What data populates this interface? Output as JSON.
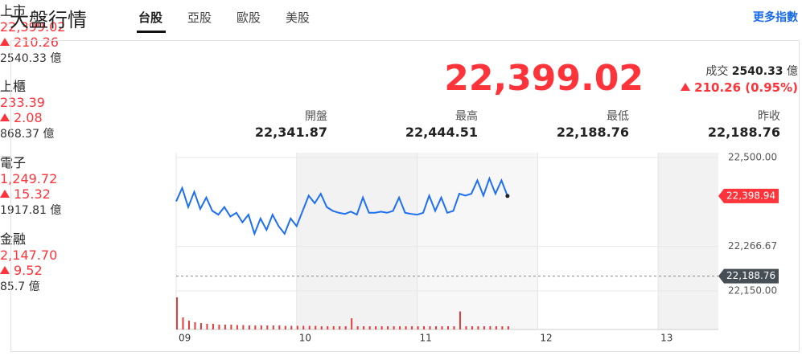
{
  "header": {
    "title": "大盤行情",
    "tabs": [
      "台股",
      "亞股",
      "歐股",
      "美股"
    ],
    "more": "更多指數"
  },
  "indices": [
    {
      "name": "上市",
      "value": "22,399.02",
      "change": "210.26",
      "volume": "2540.33 億"
    },
    {
      "name": "上櫃",
      "value": "233.39",
      "change": "2.08",
      "volume": "868.37 億"
    },
    {
      "name": "電子",
      "value": "1,249.72",
      "change": "15.32",
      "volume": "1917.81 億"
    },
    {
      "name": "金融",
      "value": "2,147.70",
      "change": "9.52",
      "volume": "85.7 億"
    }
  ],
  "summary": {
    "price": "22,399.02",
    "volume_label": "成交",
    "volume": "2540.33",
    "volume_unit": "億",
    "change": "210.26 (0.95%)",
    "stats": [
      {
        "label": "開盤",
        "value": "22,341.87"
      },
      {
        "label": "最高",
        "value": "22,444.51"
      },
      {
        "label": "最低",
        "value": "22,188.76"
      },
      {
        "label": "昨收",
        "value": "22,188.76"
      }
    ]
  },
  "chart_data": {
    "type": "line",
    "x": [
      9,
      9.05,
      9.1,
      9.15,
      9.2,
      9.25,
      9.3,
      9.35,
      9.4,
      9.45,
      9.5,
      9.55,
      9.6,
      9.65,
      9.7,
      9.75,
      9.8,
      9.85,
      9.9,
      9.95,
      10,
      10.05,
      10.1,
      10.15,
      10.2,
      10.25,
      10.3,
      10.35,
      10.4,
      10.45,
      10.5,
      10.55,
      10.6,
      10.65,
      10.7,
      10.75,
      10.8,
      10.85,
      10.9,
      10.95,
      11,
      11.05,
      11.1,
      11.15,
      11.2,
      11.25,
      11.3,
      11.35,
      11.4,
      11.45,
      11.5,
      11.55,
      11.6,
      11.65,
      11.7,
      11.75
    ],
    "series": [
      {
        "color": "#1e6ff2",
        "values": [
          22385,
          22420,
          22370,
          22410,
          22365,
          22395,
          22360,
          22350,
          22370,
          22345,
          22355,
          22330,
          22350,
          22300,
          22340,
          22310,
          22350,
          22320,
          22300,
          22340,
          22320,
          22360,
          22400,
          22380,
          22405,
          22370,
          22360,
          22355,
          22352,
          22358,
          22350,
          22395,
          22355,
          22355,
          22358,
          22355,
          22360,
          22395,
          22355,
          22352,
          22350,
          22355,
          22400,
          22360,
          22395,
          22355,
          22360,
          22405,
          22400,
          22405,
          22440,
          22400,
          22445,
          22405,
          22440,
          22399
        ]
      }
    ],
    "volume": {
      "color": "#e23c3c",
      "values": [
        80,
        30,
        22,
        18,
        16,
        14,
        14,
        12,
        12,
        12,
        11,
        11,
        10,
        10,
        10,
        10,
        10,
        10,
        9,
        9,
        9,
        9,
        9,
        9,
        8,
        8,
        8,
        8,
        8,
        28,
        8,
        8,
        8,
        8,
        8,
        8,
        8,
        8,
        8,
        8,
        8,
        8,
        8,
        8,
        8,
        8,
        8,
        45,
        8,
        8,
        8,
        8,
        8,
        8,
        8,
        8
      ]
    },
    "volume_lim": [
      0,
      100
    ],
    "xlim": [
      9,
      13.5
    ],
    "xticks": [
      {
        "value": 9,
        "label": "09"
      },
      10,
      11,
      12,
      13
    ],
    "ylim": [
      22150,
      22500
    ],
    "yticks": [
      {
        "value": 22500,
        "label": "22,500.00"
      },
      {
        "value": 22266.67,
        "label": "22,266.67"
      },
      {
        "value": 22150,
        "label": "22,150.00"
      }
    ],
    "grid": true,
    "markers": [
      {
        "value": 22398.94,
        "label": "22,398.94",
        "color": "#ff333a",
        "dashed": false
      },
      {
        "value": 22188.76,
        "label": "22,188.76",
        "color": "#464e56",
        "dashed": true
      }
    ]
  }
}
